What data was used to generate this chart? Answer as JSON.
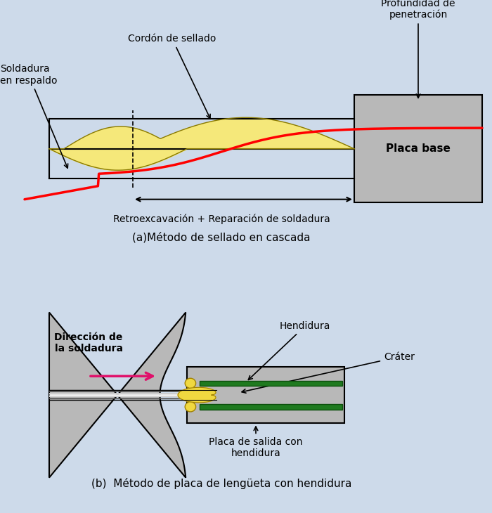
{
  "bg_color": "#cddaea",
  "fig_width": 7.0,
  "fig_height": 7.3,
  "panel_a": {
    "title": "(a)Método de sellado en cascada",
    "subtitle": "Retroexcavación + Reparación de soldadura",
    "labels": {
      "cordon": "Cordón de sellado",
      "profundidad": "Profundidad de\npenetración",
      "soldadura": "Soldadura\nen respaldo",
      "placa_base": "Placa base"
    }
  },
  "panel_b": {
    "title": "(b)  Método de placa de lengüeta con hendidura",
    "labels": {
      "direccion": "Dirección de\nla soldadura",
      "hendidura": "Hendidura",
      "crater": "Cráter",
      "placa_salida": "Placa de salida con\nhendidura"
    }
  }
}
